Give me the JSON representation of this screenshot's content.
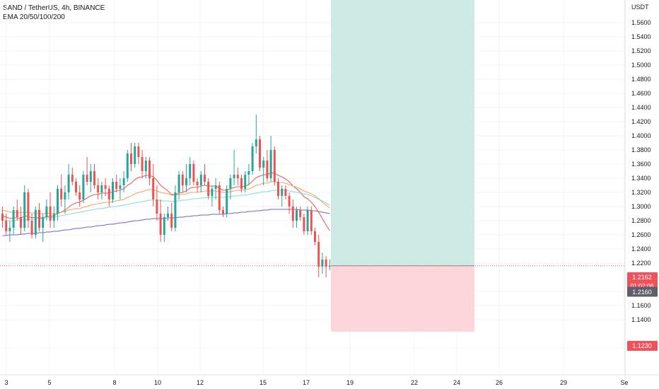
{
  "header": {
    "symbol_line": "SAND / TetherUS, 4h, BINANCE",
    "indicator_line": "EMA 20/50/100/200"
  },
  "axis": {
    "currency": "USDT",
    "price_ticks": [
      "1.5600",
      "1.5400",
      "1.5200",
      "1.5000",
      "1.4800",
      "1.4600",
      "1.4400",
      "1.4200",
      "1.4000",
      "1.3800",
      "1.3600",
      "1.3400",
      "1.3200",
      "1.3000",
      "1.2800",
      "1.2600",
      "1.2400",
      "1.2200",
      "1.1800",
      "1.1600",
      "1.1400",
      "1.1000"
    ],
    "date_ticks": [
      "3",
      "5",
      "8",
      "10",
      "12",
      "15",
      "17",
      "19",
      "22",
      "24",
      "26",
      "29",
      "Se"
    ]
  },
  "price_labels": {
    "last_price": "1.2162",
    "countdown": "01:02:06",
    "current": "1.2160",
    "stop_level": "1.1230"
  },
  "position": {
    "entry": 1.2162,
    "target": 1.62,
    "stop": 1.123,
    "profit_color": "#cdebe4",
    "loss_color": "#fcd6d8"
  },
  "colors": {
    "up": "#26a69a",
    "down": "#ef5350",
    "ema20": "#f05a5a",
    "ema50": "#f7a35c",
    "ema100": "#7de0d4",
    "ema200": "#7b5ccf",
    "badge_red": "#f0515a",
    "badge_gray": "#5d606b"
  },
  "chart_data": {
    "type": "candlestick",
    "timeframe": "4h",
    "x": [
      "3",
      "5",
      "8",
      "10",
      "12",
      "15",
      "17",
      "19",
      "22",
      "24",
      "26",
      "29"
    ],
    "ylim": [
      1.09,
      1.58
    ],
    "ohlc": [
      [
        1.29,
        1.3,
        1.27,
        1.28
      ],
      [
        1.28,
        1.29,
        1.26,
        1.265
      ],
      [
        1.265,
        1.28,
        1.25,
        1.27
      ],
      [
        1.27,
        1.3,
        1.26,
        1.295
      ],
      [
        1.295,
        1.31,
        1.28,
        1.285
      ],
      [
        1.285,
        1.3,
        1.26,
        1.27
      ],
      [
        1.27,
        1.33,
        1.265,
        1.32
      ],
      [
        1.32,
        1.325,
        1.27,
        1.28
      ],
      [
        1.28,
        1.29,
        1.255,
        1.26
      ],
      [
        1.26,
        1.3,
        1.255,
        1.295
      ],
      [
        1.295,
        1.305,
        1.265,
        1.27
      ],
      [
        1.27,
        1.29,
        1.25,
        1.285
      ],
      [
        1.285,
        1.31,
        1.28,
        1.3
      ],
      [
        1.3,
        1.32,
        1.27,
        1.28
      ],
      [
        1.28,
        1.3,
        1.27,
        1.29
      ],
      [
        1.29,
        1.33,
        1.28,
        1.325
      ],
      [
        1.325,
        1.345,
        1.3,
        1.31
      ],
      [
        1.31,
        1.33,
        1.29,
        1.32
      ],
      [
        1.32,
        1.36,
        1.31,
        1.345
      ],
      [
        1.345,
        1.355,
        1.33,
        1.335
      ],
      [
        1.335,
        1.34,
        1.315,
        1.32
      ],
      [
        1.32,
        1.33,
        1.3,
        1.31
      ],
      [
        1.31,
        1.35,
        1.305,
        1.345
      ],
      [
        1.345,
        1.37,
        1.33,
        1.335
      ],
      [
        1.335,
        1.36,
        1.32,
        1.35
      ],
      [
        1.35,
        1.36,
        1.325,
        1.33
      ],
      [
        1.33,
        1.34,
        1.31,
        1.32
      ],
      [
        1.32,
        1.335,
        1.31,
        1.33
      ],
      [
        1.33,
        1.34,
        1.315,
        1.325
      ],
      [
        1.325,
        1.33,
        1.3,
        1.31
      ],
      [
        1.31,
        1.34,
        1.305,
        1.335
      ],
      [
        1.335,
        1.345,
        1.32,
        1.325
      ],
      [
        1.325,
        1.34,
        1.31,
        1.33
      ],
      [
        1.33,
        1.35,
        1.32,
        1.34
      ],
      [
        1.34,
        1.38,
        1.335,
        1.375
      ],
      [
        1.375,
        1.39,
        1.35,
        1.36
      ],
      [
        1.36,
        1.39,
        1.355,
        1.385
      ],
      [
        1.385,
        1.39,
        1.36,
        1.37
      ],
      [
        1.37,
        1.38,
        1.34,
        1.35
      ],
      [
        1.35,
        1.37,
        1.34,
        1.365
      ],
      [
        1.365,
        1.37,
        1.33,
        1.34
      ],
      [
        1.34,
        1.36,
        1.3,
        1.31
      ],
      [
        1.31,
        1.33,
        1.28,
        1.29
      ],
      [
        1.29,
        1.31,
        1.25,
        1.26
      ],
      [
        1.26,
        1.29,
        1.25,
        1.285
      ],
      [
        1.285,
        1.3,
        1.28,
        1.29
      ],
      [
        1.29,
        1.305,
        1.265,
        1.27
      ],
      [
        1.27,
        1.33,
        1.265,
        1.32
      ],
      [
        1.32,
        1.35,
        1.31,
        1.345
      ],
      [
        1.345,
        1.35,
        1.32,
        1.33
      ],
      [
        1.33,
        1.36,
        1.32,
        1.34
      ],
      [
        1.34,
        1.37,
        1.33,
        1.36
      ],
      [
        1.36,
        1.365,
        1.33,
        1.335
      ],
      [
        1.335,
        1.34,
        1.32,
        1.33
      ],
      [
        1.33,
        1.35,
        1.32,
        1.345
      ],
      [
        1.345,
        1.36,
        1.33,
        1.335
      ],
      [
        1.335,
        1.34,
        1.31,
        1.315
      ],
      [
        1.315,
        1.33,
        1.3,
        1.325
      ],
      [
        1.325,
        1.34,
        1.31,
        1.33
      ],
      [
        1.33,
        1.335,
        1.29,
        1.295
      ],
      [
        1.295,
        1.3,
        1.285,
        1.29
      ],
      [
        1.29,
        1.33,
        1.285,
        1.325
      ],
      [
        1.325,
        1.345,
        1.31,
        1.34
      ],
      [
        1.34,
        1.38,
        1.33,
        1.345
      ],
      [
        1.345,
        1.355,
        1.33,
        1.34
      ],
      [
        1.34,
        1.345,
        1.32,
        1.325
      ],
      [
        1.325,
        1.35,
        1.32,
        1.345
      ],
      [
        1.345,
        1.36,
        1.33,
        1.35
      ],
      [
        1.35,
        1.39,
        1.345,
        1.385
      ],
      [
        1.385,
        1.43,
        1.375,
        1.395
      ],
      [
        1.395,
        1.4,
        1.35,
        1.355
      ],
      [
        1.355,
        1.37,
        1.33,
        1.365
      ],
      [
        1.365,
        1.38,
        1.335,
        1.34
      ],
      [
        1.34,
        1.4,
        1.335,
        1.38
      ],
      [
        1.38,
        1.385,
        1.33,
        1.335
      ],
      [
        1.335,
        1.34,
        1.31,
        1.315
      ],
      [
        1.315,
        1.33,
        1.3,
        1.325
      ],
      [
        1.325,
        1.33,
        1.31,
        1.315
      ],
      [
        1.315,
        1.32,
        1.29,
        1.3
      ],
      [
        1.3,
        1.31,
        1.27,
        1.28
      ],
      [
        1.28,
        1.3,
        1.27,
        1.295
      ],
      [
        1.295,
        1.3,
        1.28,
        1.285
      ],
      [
        1.285,
        1.29,
        1.26,
        1.265
      ],
      [
        1.265,
        1.3,
        1.26,
        1.295
      ],
      [
        1.295,
        1.3,
        1.26,
        1.265
      ],
      [
        1.265,
        1.27,
        1.245,
        1.25
      ],
      [
        1.25,
        1.26,
        1.2,
        1.215
      ],
      [
        1.215,
        1.235,
        1.205,
        1.225
      ],
      [
        1.225,
        1.23,
        1.2,
        1.215
      ],
      [
        1.215,
        1.225,
        1.21,
        1.216
      ]
    ],
    "ema_series": [
      {
        "name": "EMA 20",
        "values": [
          1.287,
          1.285,
          1.283,
          1.284,
          1.284,
          1.283,
          1.287,
          1.286,
          1.284,
          1.285,
          1.284,
          1.284,
          1.286,
          1.286,
          1.287,
          1.29,
          1.292,
          1.295,
          1.299,
          1.303,
          1.305,
          1.306,
          1.309,
          1.312,
          1.315,
          1.317,
          1.317,
          1.319,
          1.319,
          1.319,
          1.321,
          1.322,
          1.323,
          1.325,
          1.33,
          1.333,
          1.338,
          1.341,
          1.342,
          1.344,
          1.344,
          1.342,
          1.337,
          1.33,
          1.326,
          1.322,
          1.317,
          1.317,
          1.319,
          1.32,
          1.322,
          1.326,
          1.327,
          1.327,
          1.329,
          1.33,
          1.329,
          1.329,
          1.329,
          1.326,
          1.323,
          1.323,
          1.325,
          1.327,
          1.328,
          1.328,
          1.329,
          1.331,
          1.336,
          1.341,
          1.343,
          1.345,
          1.345,
          1.348,
          1.347,
          1.344,
          1.342,
          1.339,
          1.335,
          1.329,
          1.325,
          1.32,
          1.314,
          1.311,
          1.306,
          1.3,
          1.292,
          1.283,
          1.274,
          1.266
        ]
      },
      {
        "name": "EMA 50",
        "values": [
          1.295,
          1.294,
          1.292,
          1.292,
          1.292,
          1.291,
          1.292,
          1.292,
          1.291,
          1.291,
          1.29,
          1.29,
          1.291,
          1.29,
          1.29,
          1.292,
          1.292,
          1.293,
          1.295,
          1.296,
          1.297,
          1.297,
          1.299,
          1.3,
          1.302,
          1.303,
          1.304,
          1.305,
          1.306,
          1.306,
          1.307,
          1.308,
          1.309,
          1.31,
          1.313,
          1.315,
          1.318,
          1.32,
          1.321,
          1.323,
          1.324,
          1.324,
          1.322,
          1.32,
          1.319,
          1.318,
          1.316,
          1.316,
          1.317,
          1.317,
          1.318,
          1.32,
          1.32,
          1.32,
          1.321,
          1.322,
          1.322,
          1.322,
          1.322,
          1.321,
          1.32,
          1.32,
          1.321,
          1.322,
          1.323,
          1.323,
          1.324,
          1.325,
          1.327,
          1.33,
          1.331,
          1.333,
          1.333,
          1.335,
          1.335,
          1.334,
          1.334,
          1.333,
          1.331,
          1.329,
          1.327,
          1.325,
          1.322,
          1.32,
          1.318,
          1.315,
          1.311,
          1.306,
          1.302,
          1.298
        ]
      },
      {
        "name": "EMA 100",
        "values": [
          1.28,
          1.28,
          1.28,
          1.28,
          1.281,
          1.281,
          1.281,
          1.282,
          1.282,
          1.282,
          1.283,
          1.283,
          1.284,
          1.284,
          1.285,
          1.286,
          1.287,
          1.288,
          1.289,
          1.29,
          1.291,
          1.292,
          1.293,
          1.294,
          1.295,
          1.296,
          1.297,
          1.297,
          1.298,
          1.299,
          1.3,
          1.3,
          1.301,
          1.302,
          1.303,
          1.304,
          1.305,
          1.306,
          1.307,
          1.308,
          1.309,
          1.309,
          1.309,
          1.308,
          1.308,
          1.308,
          1.307,
          1.308,
          1.308,
          1.309,
          1.309,
          1.31,
          1.311,
          1.311,
          1.312,
          1.312,
          1.313,
          1.313,
          1.313,
          1.313,
          1.313,
          1.313,
          1.314,
          1.315,
          1.315,
          1.316,
          1.316,
          1.317,
          1.318,
          1.319,
          1.32,
          1.321,
          1.321,
          1.322,
          1.323,
          1.323,
          1.323,
          1.323,
          1.322,
          1.321,
          1.32,
          1.319,
          1.318,
          1.317,
          1.315,
          1.313,
          1.31,
          1.308,
          1.305,
          1.302
        ]
      },
      {
        "name": "EMA 200",
        "values": [
          1.259,
          1.259,
          1.26,
          1.26,
          1.26,
          1.261,
          1.261,
          1.262,
          1.262,
          1.262,
          1.263,
          1.263,
          1.264,
          1.264,
          1.265,
          1.265,
          1.266,
          1.267,
          1.267,
          1.268,
          1.269,
          1.269,
          1.27,
          1.271,
          1.271,
          1.272,
          1.273,
          1.273,
          1.274,
          1.275,
          1.275,
          1.276,
          1.277,
          1.277,
          1.278,
          1.279,
          1.28,
          1.28,
          1.281,
          1.282,
          1.282,
          1.283,
          1.283,
          1.283,
          1.283,
          1.284,
          1.284,
          1.284,
          1.285,
          1.285,
          1.286,
          1.286,
          1.287,
          1.287,
          1.288,
          1.288,
          1.288,
          1.289,
          1.289,
          1.289,
          1.289,
          1.29,
          1.29,
          1.291,
          1.291,
          1.292,
          1.292,
          1.293,
          1.293,
          1.294,
          1.294,
          1.295,
          1.295,
          1.296,
          1.296,
          1.296,
          1.296,
          1.296,
          1.296,
          1.296,
          1.296,
          1.295,
          1.295,
          1.295,
          1.294,
          1.294,
          1.293,
          1.292,
          1.291,
          1.29
        ]
      }
    ]
  }
}
